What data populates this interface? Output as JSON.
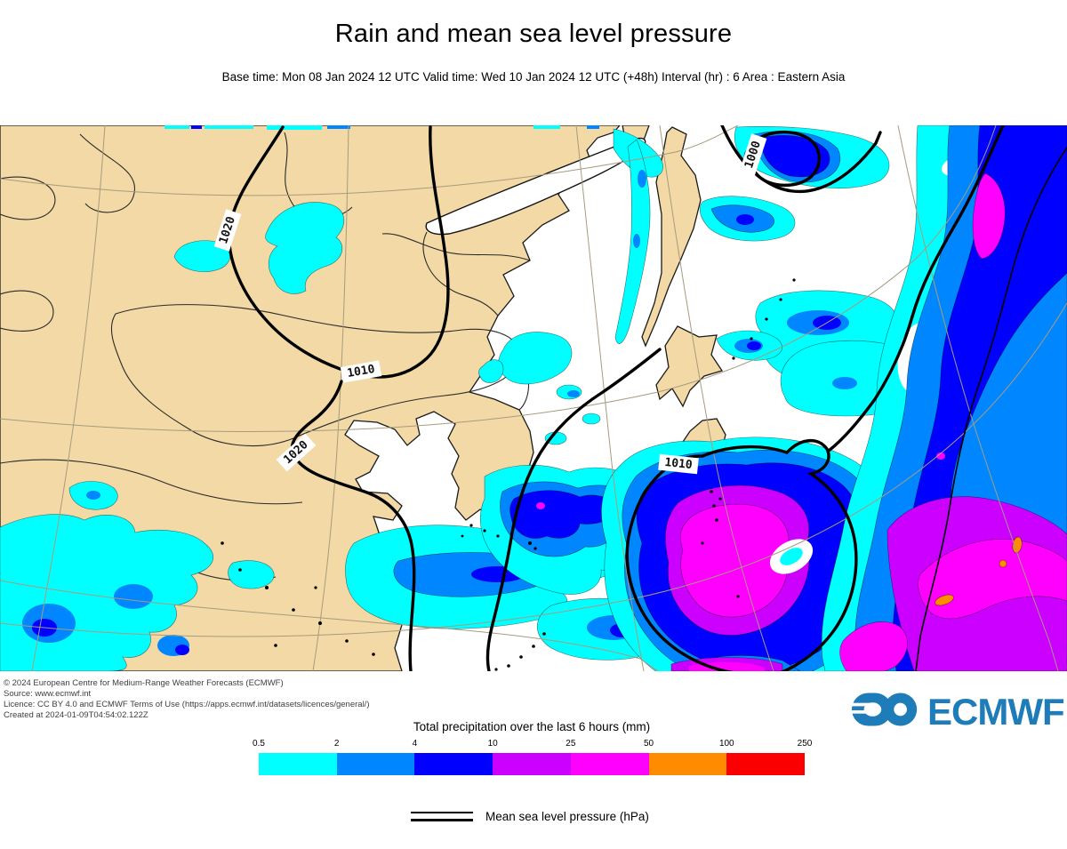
{
  "header": {
    "title": "Rain and mean sea level pressure",
    "subtitle": "Base time: Mon 08 Jan 2024 12 UTC Valid time: Wed 10 Jan 2024 12 UTC (+48h) Interval (hr) : 6 Area : Eastern Asia"
  },
  "map": {
    "land_color": "#F2D9A6",
    "sea_color": "#FFFFFF",
    "graticule_color": "#A79B7E",
    "contour_color": "#000000",
    "contour_labels": [
      {
        "text": "1020"
      },
      {
        "text": "1010"
      },
      {
        "text": "1020"
      },
      {
        "text": "1010"
      },
      {
        "text": "1000"
      }
    ]
  },
  "footer": {
    "copyright_lines": [
      "© 2024 European Centre for Medium-Range Weather Forecasts (ECMWF)",
      "Source: www.ecmwf.int",
      "Licence: CC BY 4.0 and ECMWF Terms of Use (https://apps.ecmwf.int/datasets/licences/general/)",
      "Created at 2024-01-09T04:54:02.122Z"
    ]
  },
  "logo": {
    "text": "ECMWF",
    "color": "#1E7CB8"
  },
  "legend": {
    "title": "Total precipitation over the last 6 hours (mm)",
    "ticks": [
      "0.5",
      "2",
      "4",
      "10",
      "25",
      "50",
      "100",
      "250"
    ],
    "colors": [
      "#00FFFF",
      "#0087FF",
      "#0000FF",
      "#CC00FF",
      "#FF00FF",
      "#FF8C00",
      "#FA0000"
    ],
    "mslp_label": "Mean sea level pressure (hPa)"
  },
  "chart_data": {
    "type": "heatmap",
    "title": "Rain and mean sea level pressure",
    "subtitle": "Base time: Mon 08 Jan 2024 12 UTC Valid time: Wed 10 Jan 2024 12 UTC (+48h) Interval (hr) : 6 Area : Eastern Asia",
    "region": "Eastern Asia",
    "variable": "Total precipitation over the last 6 hours (mm)",
    "colorscale": {
      "breaks_mm": [
        0.5,
        2,
        4,
        10,
        25,
        50,
        100,
        250
      ],
      "colors": [
        "#00FFFF",
        "#0087FF",
        "#0000FF",
        "#CC00FF",
        "#FF00FF",
        "#FF8C00",
        "#FA0000"
      ]
    },
    "overlay": "Mean sea level pressure (hPa)",
    "contour_labels_hpa": [
      1020,
      1010,
      1020,
      1010,
      1000
    ],
    "features": [
      "High pressure (1020 hPa) over continental East Asia with little precipitation",
      "1010 hPa closed low southeast of Japan with 25-50 mm precipitation core",
      "1000 hPa closed low near Sea of Okhotsk with 4-10 mm core",
      "Long frontal precipitation band along the western Pacific with 10-50 mm and isolated 50-100 mm cells"
    ]
  }
}
